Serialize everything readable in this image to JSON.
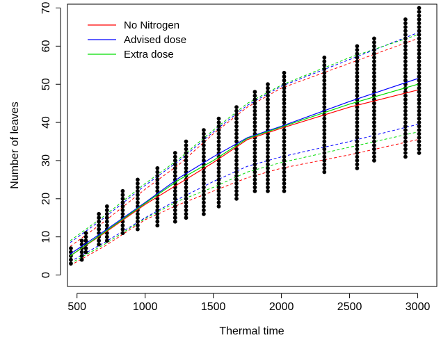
{
  "chart_data": {
    "type": "scatter",
    "title": "",
    "xlabel": "Thermal time",
    "ylabel": "Number of leaves",
    "xlim": [
      430,
      3140
    ],
    "ylim": [
      -3,
      71
    ],
    "x_ticks": [
      500,
      1000,
      1500,
      2000,
      2500,
      3000
    ],
    "y_ticks": [
      0,
      10,
      20,
      30,
      40,
      50,
      60,
      70
    ],
    "grid": false,
    "legend_position": "top-left",
    "points": [
      {
        "x": 455,
        "min": 3,
        "max": 7
      },
      {
        "x": 535,
        "min": 4,
        "max": 9
      },
      {
        "x": 565,
        "min": 6,
        "max": 11
      },
      {
        "x": 660,
        "min": 8,
        "max": 16
      },
      {
        "x": 720,
        "min": 9,
        "max": 18
      },
      {
        "x": 835,
        "min": 11,
        "max": 22
      },
      {
        "x": 945,
        "min": 12,
        "max": 25
      },
      {
        "x": 1090,
        "min": 13,
        "max": 28
      },
      {
        "x": 1220,
        "min": 14,
        "max": 32
      },
      {
        "x": 1300,
        "min": 15,
        "max": 35
      },
      {
        "x": 1430,
        "min": 16,
        "max": 38
      },
      {
        "x": 1540,
        "min": 18,
        "max": 41
      },
      {
        "x": 1670,
        "min": 20,
        "max": 44
      },
      {
        "x": 1805,
        "min": 22,
        "max": 48
      },
      {
        "x": 1900,
        "min": 22,
        "max": 50
      },
      {
        "x": 2020,
        "min": 22,
        "max": 53
      },
      {
        "x": 2315,
        "min": 27,
        "max": 57
      },
      {
        "x": 2555,
        "min": 28,
        "max": 60
      },
      {
        "x": 2680,
        "min": 30,
        "max": 62
      },
      {
        "x": 2910,
        "min": 31,
        "max": 67
      },
      {
        "x": 3010,
        "min": 32,
        "max": 70
      }
    ],
    "series": [
      {
        "name": "No Nitrogen",
        "color": "#ff0000",
        "x": [
          450,
          700,
          1000,
          1250,
          1500,
          1750,
          2000,
          2500,
          3000
        ],
        "y": [
          5,
          11,
          18.5,
          24,
          29.5,
          35.5,
          38.5,
          44,
          48.5
        ],
        "lower": [
          2.5,
          7.5,
          14.5,
          18.5,
          22,
          25.5,
          28,
          31.5,
          35.5
        ],
        "upper": [
          7.5,
          14,
          22.5,
          29,
          37,
          44,
          49,
          55.5,
          62
        ]
      },
      {
        "name": "Advised dose",
        "color": "#0000ff",
        "x": [
          450,
          700,
          1000,
          1250,
          1500,
          1750,
          2000,
          2500,
          3000
        ],
        "y": [
          5.5,
          11.5,
          19,
          25.5,
          31,
          36,
          39,
          45.5,
          51.5
        ],
        "lower": [
          3.5,
          8.5,
          15,
          20,
          24.5,
          28.5,
          31,
          35,
          39.5
        ],
        "upper": [
          8.5,
          15,
          23.5,
          30,
          37.5,
          44.5,
          49.5,
          56.5,
          63.5
        ]
      },
      {
        "name": "Extra dose",
        "color": "#00dd00",
        "x": [
          450,
          700,
          1000,
          1250,
          1500,
          1750,
          2000,
          2500,
          3000
        ],
        "y": [
          5,
          11.2,
          18.8,
          25,
          30,
          35.8,
          38.8,
          44.8,
          50
        ],
        "lower": [
          3,
          8,
          14.8,
          19.5,
          23,
          27,
          29.5,
          33.5,
          37.5
        ],
        "upper": [
          9,
          15.5,
          24,
          30.5,
          38,
          45,
          49.8,
          57,
          63
        ]
      }
    ]
  }
}
